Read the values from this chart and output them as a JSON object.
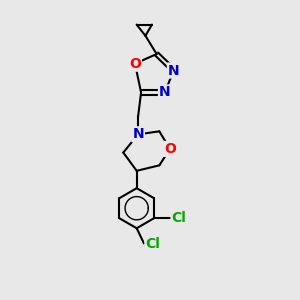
{
  "background_color": "#e8e8e8",
  "bond_color": "#000000",
  "N_color": "#0000cc",
  "O_color": "#ff0000",
  "Cl_color": "#00aa00",
  "font_size_atoms": 10,
  "figsize": [
    3.0,
    3.0
  ],
  "dpi": 100,
  "xlim": [
    0,
    10
  ],
  "ylim": [
    0,
    10
  ]
}
